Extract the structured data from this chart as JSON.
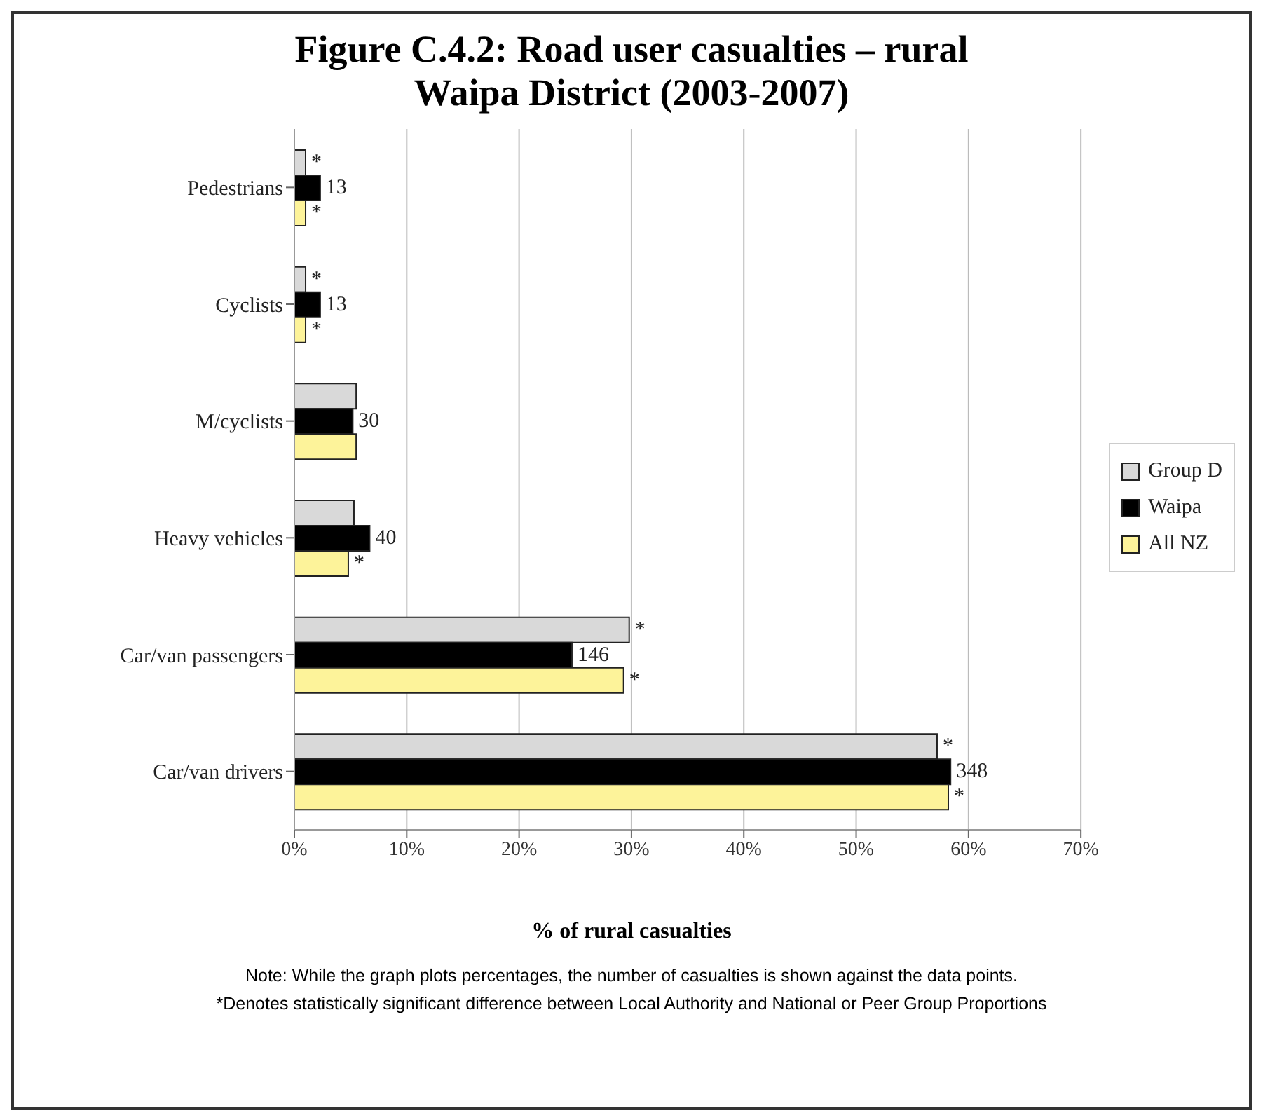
{
  "chart_data": {
    "type": "bar",
    "orientation": "horizontal",
    "title": "Figure C.4.2: Road user casualties – rural\nWaipa District (2003-2007)",
    "xlabel": "% of rural casualties",
    "categories": [
      "Pedestrians",
      "Cyclists",
      "M/cyclists",
      "Heavy vehicles",
      "Car/van passengers",
      "Car/van drivers"
    ],
    "series": [
      {
        "name": "Group D",
        "color": "#d9d9d9",
        "values": [
          1.0,
          1.0,
          5.5,
          5.3,
          29.8,
          57.2
        ],
        "value_labels": [
          "*",
          "*",
          null,
          null,
          "*",
          "*"
        ]
      },
      {
        "name": "Waipa",
        "color": "#000000",
        "values": [
          2.3,
          2.3,
          5.2,
          6.7,
          24.7,
          58.4
        ]
      },
      {
        "name": "All NZ",
        "color": "#fdf39a",
        "values": [
          1.0,
          1.0,
          5.5,
          4.8,
          29.3,
          58.2
        ],
        "value_labels": [
          "*",
          "*",
          null,
          "*",
          "*",
          "*"
        ]
      }
    ],
    "xlim": [
      0,
      70
    ],
    "xticks": [
      {
        "value": 0,
        "label": "0%"
      },
      {
        "value": 10,
        "label": "10%"
      },
      {
        "value": 20,
        "label": "20%"
      },
      {
        "value": 30,
        "label": "30%"
      },
      {
        "value": 40,
        "label": "40%"
      },
      {
        "value": 50,
        "label": "50%"
      },
      {
        "value": 60,
        "label": "60%"
      },
      {
        "value": 70,
        "label": "70%"
      }
    ],
    "grid": "x",
    "legend": "right",
    "annotations": [
      {
        "text": "13",
        "x": 2.3,
        "y": "Pedestrians"
      },
      {
        "text": "13",
        "x": 2.3,
        "y": "Cyclists"
      },
      {
        "text": "30",
        "x": 5.2,
        "y": "M/cyclists"
      },
      {
        "text": "40",
        "x": 6.7,
        "y": "Heavy vehicles"
      },
      {
        "text": "146",
        "x": 24.7,
        "y": "Car/van passengers"
      },
      {
        "text": "348",
        "x": 58.4,
        "y": "Car/van drivers"
      },
      "Note: While the graph plots percentages, the number of casualties is shown against the data points.",
      "*Denotes statistically significant difference between Local Authority and National or Peer Group Proportions"
    ]
  }
}
